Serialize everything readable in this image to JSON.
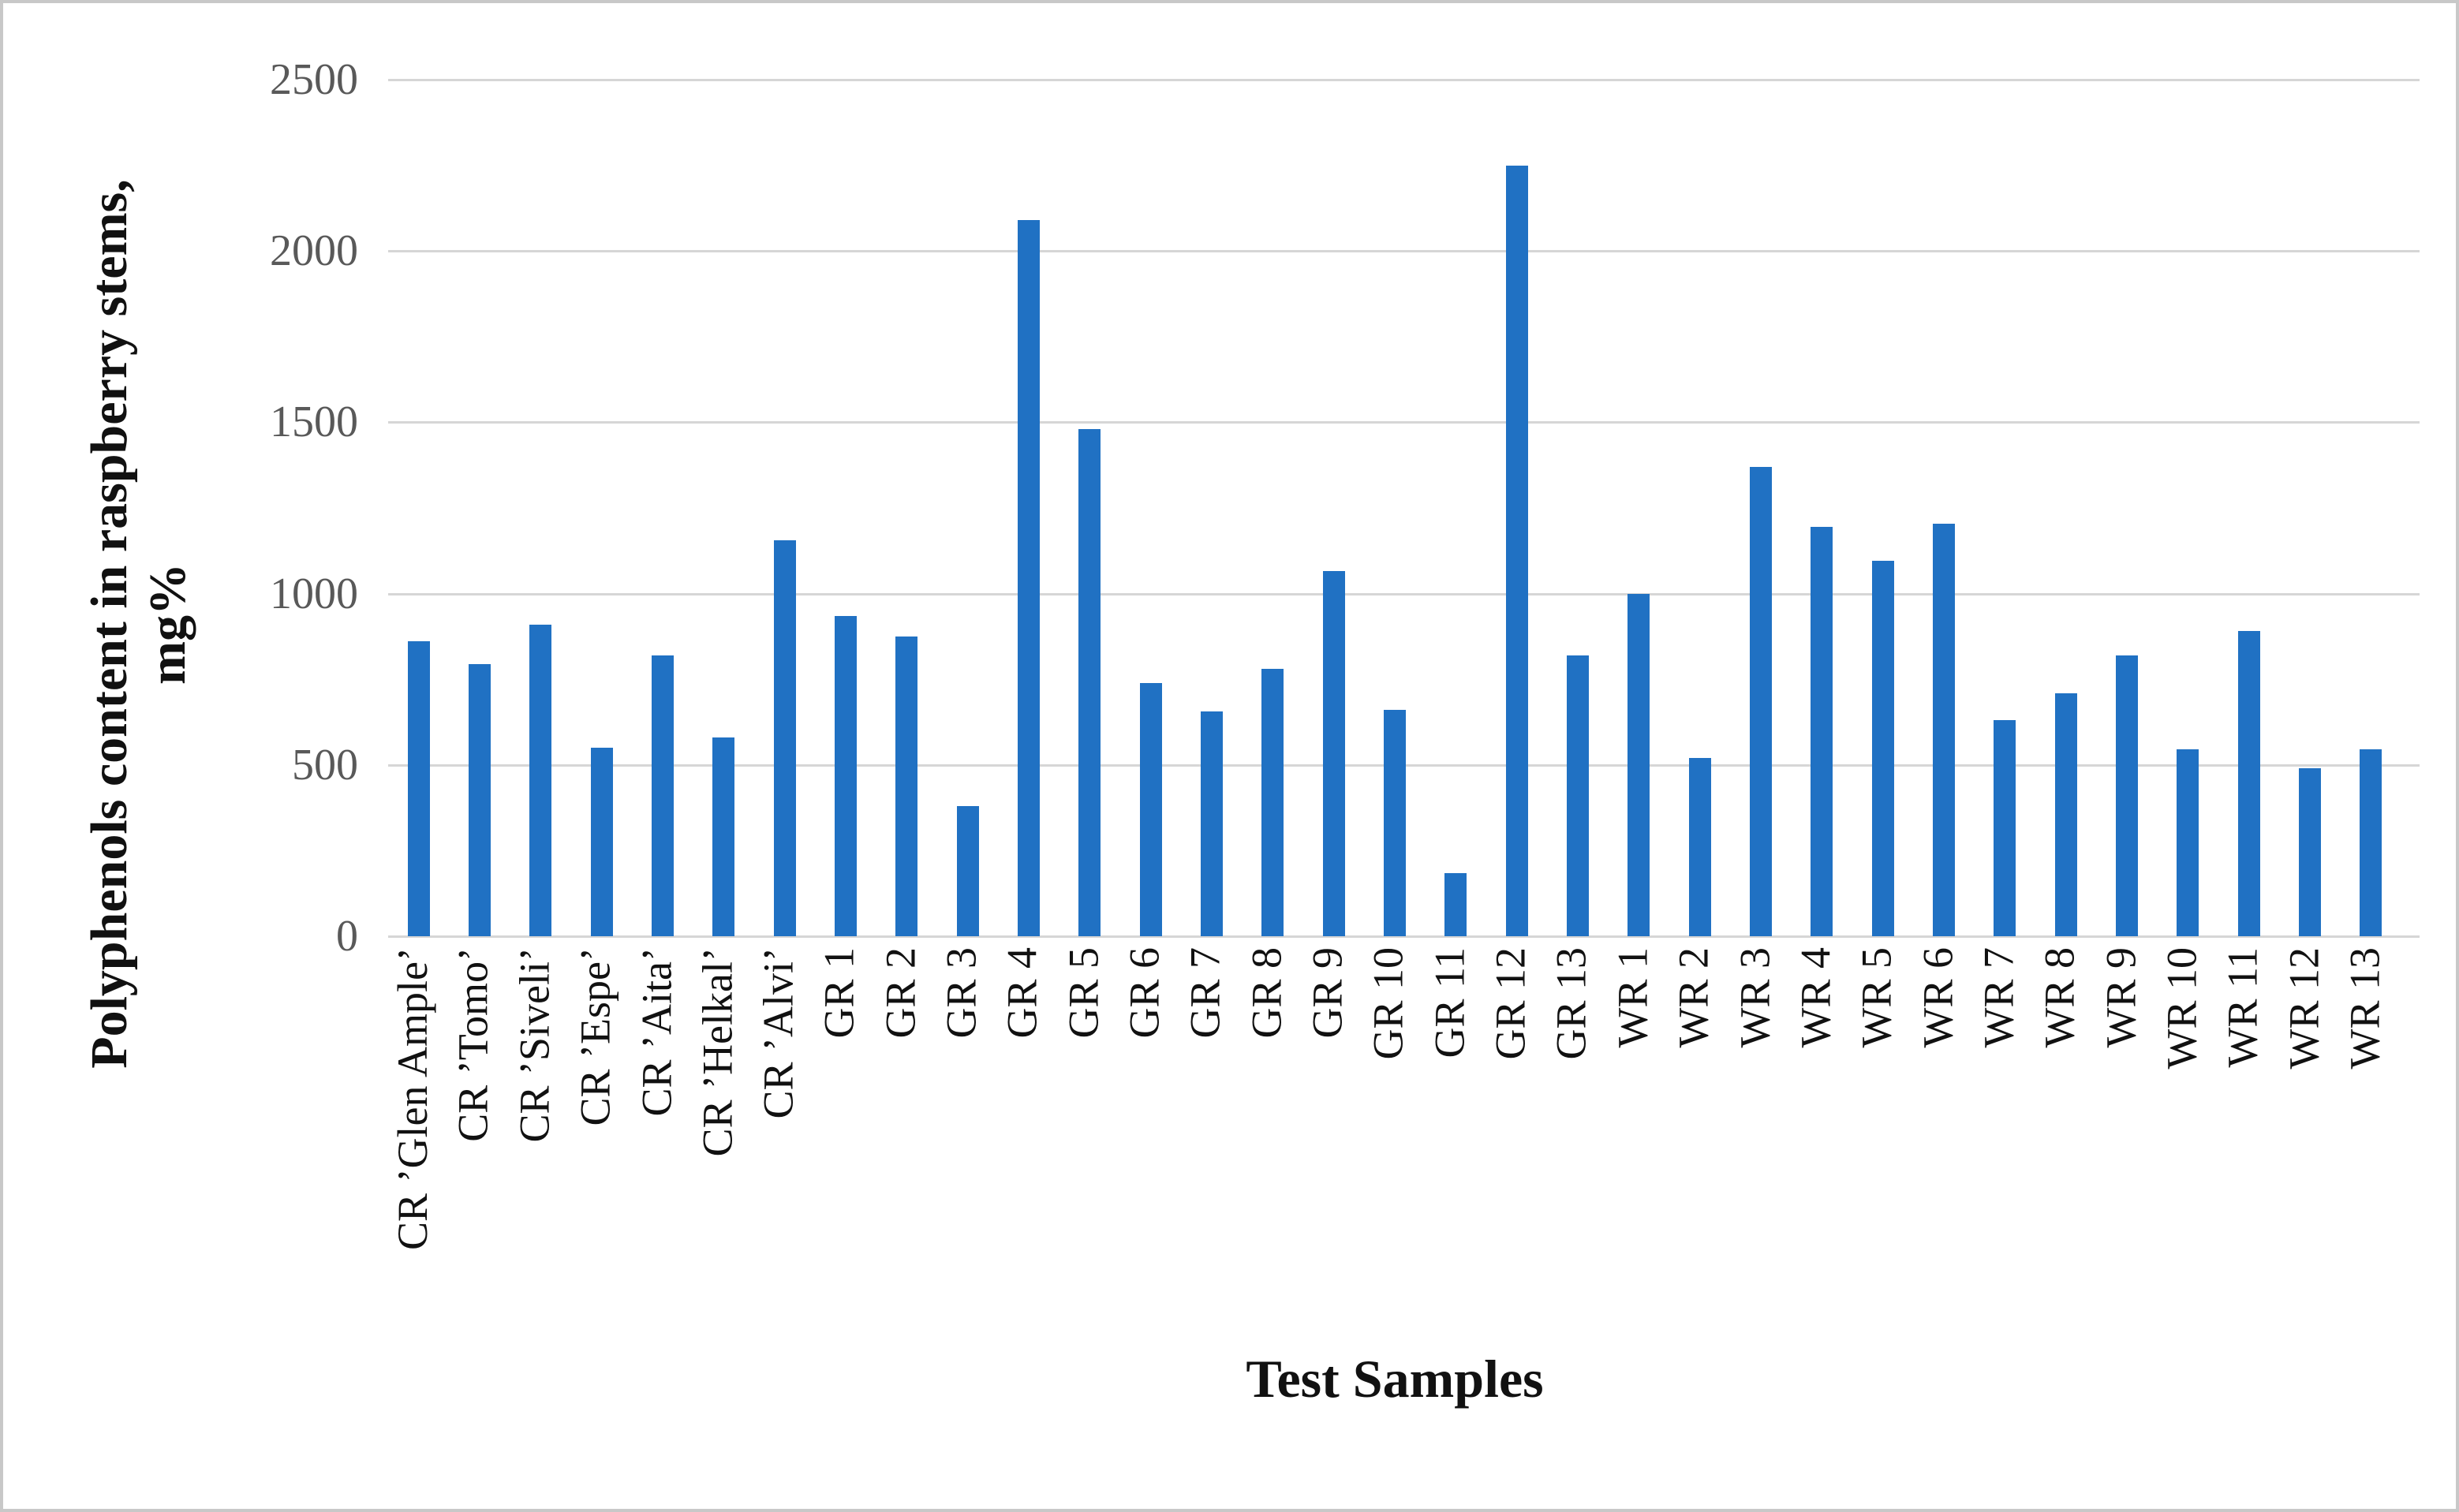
{
  "figure": {
    "x_axis_title": "Test Samples",
    "y_axis_title_line1": "Polyphenols content in raspberry stems,",
    "y_axis_title_line2": "mg%"
  },
  "chart_data": {
    "type": "bar",
    "title": "",
    "xlabel": "Test Samples",
    "ylabel": "Polyphenols content in raspberry stems, mg%",
    "ylim": [
      0,
      2500
    ],
    "yticks": [
      0,
      500,
      1000,
      1500,
      2000,
      2500
    ],
    "grid": true,
    "legend": false,
    "categories": [
      "CR ’Glen Ample’",
      "CR ’Tomo’",
      "CR ’Siveli’",
      "CR ’Espe’",
      "CR ’Aita’",
      "CR ’Helkal’",
      "CR ’Alvi’",
      "GR 1",
      "GR 2",
      "GR 3",
      "GR 4",
      "GR 5",
      "GR 6",
      "GR 7",
      "GR 8",
      "GR 9",
      "GR 10",
      "GR 11",
      "GR 12",
      "GR 13",
      "WR 1",
      "WR 2",
      "WR 3",
      "WR 4",
      "WR 5",
      "WR 6",
      "WR 7",
      "WR 8",
      "WR 9",
      "WR 10",
      "WR 11",
      "WR 12",
      "WR 13"
    ],
    "values": [
      860,
      795,
      910,
      550,
      820,
      580,
      1155,
      935,
      875,
      380,
      2090,
      1480,
      740,
      655,
      780,
      1065,
      660,
      185,
      2250,
      820,
      1000,
      520,
      1370,
      1195,
      1095,
      1205,
      630,
      710,
      820,
      545,
      890,
      490,
      545
    ],
    "colors": {
      "bar": "#2071C3",
      "gridline": "#D6D6D6",
      "tick_label": "#595959",
      "text": "#111111",
      "frame": "#C8C8C8"
    }
  }
}
